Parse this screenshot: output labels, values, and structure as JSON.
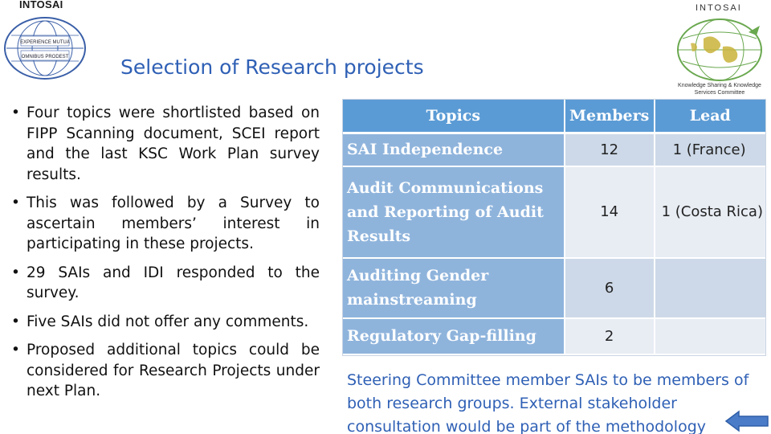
{
  "header": {
    "left_logo_text": "INTOSAI",
    "left_logo_ring_top": "EXPERIENCE MUTUA",
    "left_logo_ring_bottom": "OMNIBUS PRODEST",
    "right_logo_text": "INTOSAI",
    "right_logo_caption_1": "Knowledge Sharing & Knowledge",
    "right_logo_caption_2": "Services Committee"
  },
  "slide": {
    "title": "Selection of Research projects",
    "bullets": [
      "Four topics were shortlisted based on FIPP Scanning document, SCEI report and the last KSC Work Plan survey results.",
      "This was followed by a Survey to ascertain members’ interest in participating in these projects.",
      "29 SAIs and IDI responded to the survey.",
      "Five SAIs did not offer any comments.",
      "Proposed additional topics could be considered for Research Projects under next Plan."
    ],
    "table": {
      "headers": [
        "Topics",
        "Members",
        "Lead"
      ],
      "rows": [
        {
          "topic": "SAI Independence",
          "members": "12",
          "lead": "1  (France)"
        },
        {
          "topic": "Audit Communications and Reporting of Audit Results",
          "members": "14",
          "lead": "1  (Costa Rica)"
        },
        {
          "topic": "Auditing Gender mainstreaming",
          "members": "6",
          "lead": ""
        },
        {
          "topic": "Regulatory Gap-filling",
          "members": "2",
          "lead": ""
        }
      ]
    },
    "note": "Steering Committee member SAIs to be members of both research groups. External stakeholder consultation would be part of the methodology"
  },
  "icons": {
    "left_logo": "intosai-globe-logo-icon",
    "right_logo": "ksc-globe-logo-icon",
    "nav": "back-arrow-icon"
  },
  "colors": {
    "title": "#2f60b5",
    "table_header": "#5b9bd5",
    "row_topic": "#8fb4dc",
    "note": "#2f60b5",
    "arrow": "#4a7cc8"
  }
}
